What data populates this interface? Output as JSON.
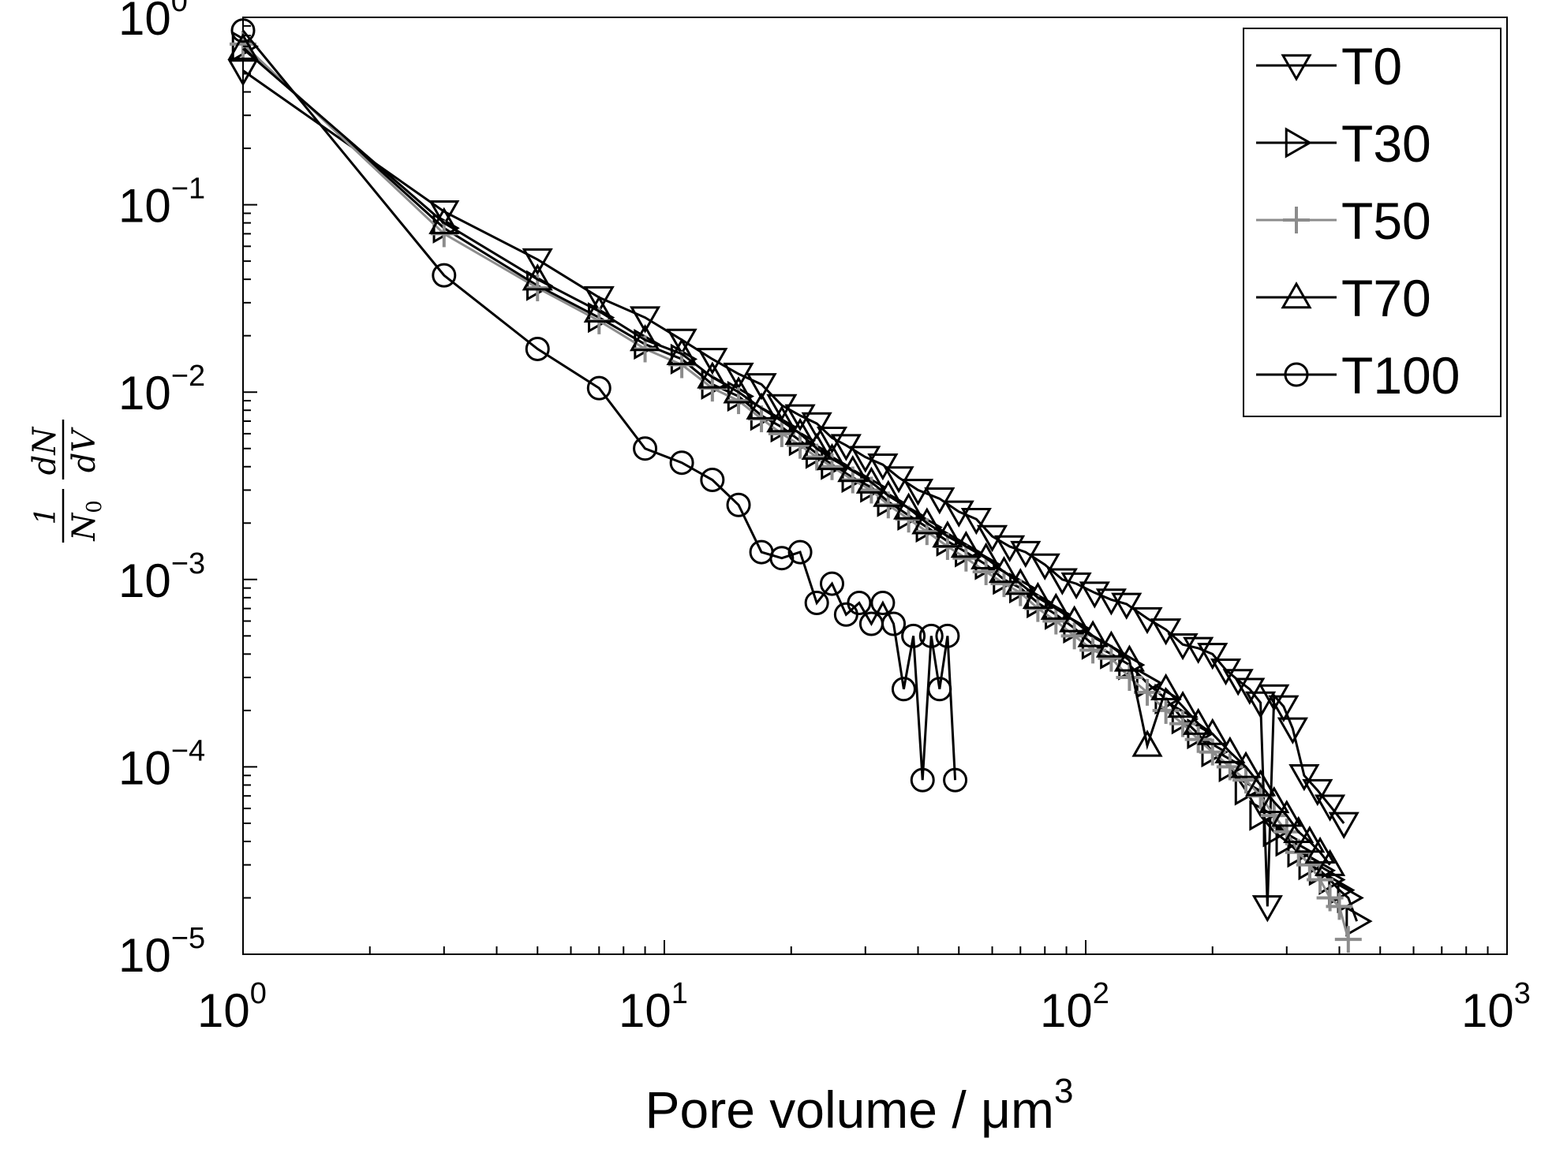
{
  "chart_data": {
    "type": "line",
    "xscale": "log",
    "yscale": "log",
    "xlim": [
      1,
      1000
    ],
    "ylim": [
      1e-05,
      1
    ],
    "grid": false,
    "legend_position": "top-right",
    "x_ticks": [
      {
        "base": "10",
        "exp": "0"
      },
      {
        "base": "10",
        "exp": "1"
      },
      {
        "base": "10",
        "exp": "2"
      },
      {
        "base": "10",
        "exp": "3"
      }
    ],
    "y_ticks": [
      {
        "base": "10",
        "exp": "0"
      },
      {
        "base": "10",
        "exp": "−1"
      },
      {
        "base": "10",
        "exp": "−2"
      },
      {
        "base": "10",
        "exp": "−3"
      },
      {
        "base": "10",
        "exp": "−4"
      },
      {
        "base": "10",
        "exp": "−5"
      }
    ],
    "xlabel": {
      "text": "Pore volume / μm",
      "sup": "3"
    },
    "ylabel": {
      "numerator": "1",
      "denominator": "N",
      "denominator_sub": "0",
      "d_num": "dN",
      "d_den": "dV"
    },
    "series": [
      {
        "name": "T0",
        "marker": "triangle-down",
        "color": "#000000",
        "x": [
          1,
          3,
          5,
          7,
          9,
          11,
          13,
          15,
          17,
          19,
          21,
          23,
          25,
          27,
          30,
          33,
          36,
          40,
          45,
          50,
          55,
          60,
          66,
          72,
          80,
          88,
          95,
          105,
          115,
          125,
          140,
          155,
          170,
          185,
          200,
          215,
          230,
          245,
          260,
          270,
          280,
          295,
          310,
          330,
          355,
          380,
          410
        ],
        "y": [
          0.52,
          0.092,
          0.051,
          0.032,
          0.025,
          0.019,
          0.015,
          0.0125,
          0.011,
          0.0085,
          0.0075,
          0.0068,
          0.0057,
          0.0052,
          0.0045,
          0.0041,
          0.0035,
          0.003,
          0.0027,
          0.0023,
          0.0021,
          0.0017,
          0.0015,
          0.0014,
          0.0012,
          0.001,
          0.00095,
          0.00085,
          0.00078,
          0.00074,
          0.00062,
          0.00054,
          0.00045,
          0.00043,
          0.0004,
          0.00033,
          0.00029,
          0.00026,
          0.00022,
          1.8e-05,
          0.00024,
          0.00021,
          0.00016,
          9e-05,
          7.5e-05,
          6.2e-05,
          5e-05
        ]
      },
      {
        "name": "T30",
        "marker": "triangle-right",
        "color": "#000000",
        "x": [
          1,
          3,
          5,
          7,
          9,
          11,
          13,
          15,
          17,
          19,
          21,
          23,
          25,
          28,
          31,
          34,
          38,
          42,
          47,
          52,
          58,
          64,
          70,
          77,
          85,
          94,
          104,
          115,
          127,
          140,
          155,
          170,
          185,
          200,
          220,
          240,
          260,
          280,
          300,
          320,
          340,
          360,
          380,
          400,
          420,
          440
        ],
        "y": [
          0.7,
          0.075,
          0.037,
          0.025,
          0.018,
          0.015,
          0.011,
          0.0095,
          0.0075,
          0.0065,
          0.0055,
          0.0047,
          0.0041,
          0.0035,
          0.0031,
          0.0026,
          0.0022,
          0.0019,
          0.0016,
          0.0014,
          0.0012,
          0.001,
          0.0009,
          0.00075,
          0.00065,
          0.00055,
          0.00045,
          0.0004,
          0.00035,
          0.00028,
          0.00023,
          0.00018,
          0.00015,
          0.00012,
          0.0001,
          7.5e-05,
          5.5e-05,
          4.5e-05,
          4e-05,
          3.5e-05,
          3e-05,
          2.8e-05,
          2.5e-05,
          2.2e-05,
          2e-05,
          1.5e-05
        ]
      },
      {
        "name": "T50",
        "marker": "plus",
        "color": "#8c8c8c",
        "x": [
          1,
          3,
          5,
          7,
          9,
          11,
          13,
          15,
          17,
          19,
          21,
          23,
          25,
          28,
          31,
          34,
          38,
          42,
          47,
          52,
          58,
          64,
          70,
          77,
          85,
          94,
          104,
          115,
          127,
          140,
          155,
          170,
          185,
          200,
          220,
          240,
          260,
          280,
          300,
          320,
          340,
          360,
          380,
          400,
          420
        ],
        "y": [
          0.72,
          0.07,
          0.036,
          0.024,
          0.017,
          0.014,
          0.0105,
          0.009,
          0.0072,
          0.006,
          0.0052,
          0.0045,
          0.004,
          0.0034,
          0.003,
          0.0025,
          0.0021,
          0.0018,
          0.0015,
          0.0013,
          0.0011,
          0.00095,
          0.00085,
          0.0007,
          0.0006,
          0.0005,
          0.00042,
          0.00038,
          0.0003,
          0.00025,
          0.0002,
          0.00017,
          0.00014,
          0.00012,
          0.0001,
          8.5e-05,
          7e-05,
          5.5e-05,
          4.5e-05,
          3.5e-05,
          3e-05,
          2.5e-05,
          2e-05,
          1.8e-05,
          1.2e-05
        ]
      },
      {
        "name": "T70",
        "marker": "triangle-up",
        "color": "#000000",
        "x": [
          1,
          3,
          5,
          7,
          9,
          11,
          13,
          15,
          17,
          19,
          21,
          23,
          25,
          28,
          31,
          34,
          38,
          42,
          47,
          52,
          58,
          64,
          70,
          77,
          85,
          94,
          104,
          115,
          127,
          140,
          155,
          170,
          185,
          200,
          220,
          240,
          260,
          280,
          300,
          320,
          340,
          360,
          380
        ],
        "y": [
          0.68,
          0.08,
          0.04,
          0.027,
          0.019,
          0.016,
          0.012,
          0.01,
          0.0082,
          0.007,
          0.006,
          0.005,
          0.0044,
          0.0038,
          0.0033,
          0.0028,
          0.0024,
          0.002,
          0.0017,
          0.0015,
          0.0013,
          0.0011,
          0.00095,
          0.0008,
          0.0007,
          0.0006,
          0.0005,
          0.00044,
          0.00037,
          0.00013,
          0.00026,
          0.00021,
          0.00017,
          0.00015,
          0.00012,
          0.0001,
          8e-05,
          6.5e-05,
          5.5e-05,
          4.5e-05,
          4e-05,
          3.5e-05,
          3e-05
        ]
      },
      {
        "name": "T100",
        "marker": "circle",
        "color": "#000000",
        "x": [
          1,
          3,
          5,
          7,
          9,
          11,
          13,
          15,
          17,
          19,
          21,
          23,
          25,
          27,
          29,
          31,
          33,
          35,
          37,
          39,
          41,
          43,
          45,
          47,
          49
        ],
        "y": [
          0.85,
          0.042,
          0.017,
          0.0105,
          0.005,
          0.0042,
          0.0034,
          0.0025,
          0.0014,
          0.0013,
          0.0014,
          0.00075,
          0.00095,
          0.00065,
          0.00075,
          0.00058,
          0.00075,
          0.00058,
          0.00026,
          0.0005,
          8.5e-05,
          0.0005,
          0.00026,
          0.0005,
          8.5e-05
        ]
      }
    ]
  }
}
